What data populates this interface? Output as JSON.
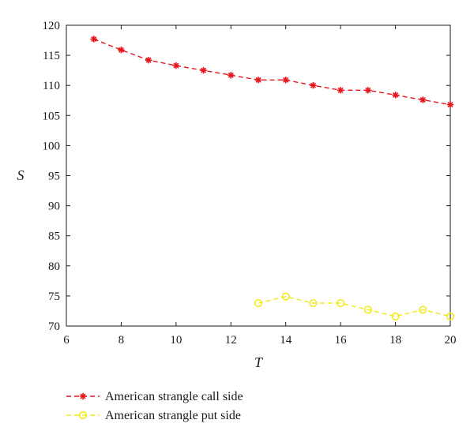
{
  "chart_data": {
    "type": "line",
    "xlabel": "T",
    "ylabel": "S",
    "xlim": [
      6,
      20
    ],
    "ylim": [
      70,
      120
    ],
    "xticks": [
      6,
      8,
      10,
      12,
      14,
      16,
      18,
      20
    ],
    "yticks": [
      70,
      75,
      80,
      85,
      90,
      95,
      100,
      105,
      110,
      115,
      120
    ],
    "grid": false,
    "legend_position": "bottom-outside",
    "series": [
      {
        "name": "American strangle call side",
        "color": "#e8141b",
        "marker": "asterisk",
        "line_style": "dashed",
        "x": [
          7,
          8,
          9,
          10,
          11,
          12,
          13,
          14,
          15,
          16,
          17,
          18,
          19,
          20
        ],
        "y": [
          117.7,
          115.9,
          114.2,
          113.3,
          112.5,
          111.7,
          110.9,
          110.9,
          110.0,
          109.2,
          109.2,
          108.4,
          107.6,
          106.8
        ]
      },
      {
        "name": "American strangle put side",
        "color": "#f2ea1c",
        "marker": "circle",
        "line_style": "dashed",
        "x": [
          13,
          14,
          15,
          16,
          17,
          18,
          19,
          20
        ],
        "y": [
          73.8,
          74.9,
          73.8,
          73.8,
          72.7,
          71.6,
          72.7,
          71.6
        ]
      }
    ]
  }
}
